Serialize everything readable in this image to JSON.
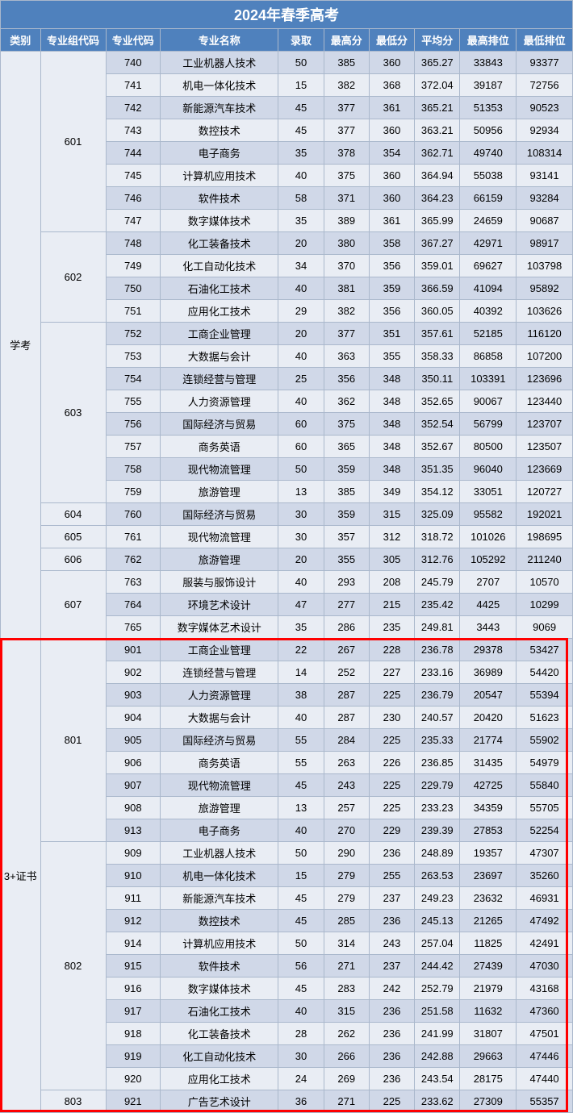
{
  "title": "2024年春季高考",
  "columns": [
    "类别",
    "专业组代码",
    "专业代码",
    "专业名称",
    "录取",
    "最高分",
    "最低分",
    "平均分",
    "最高排位",
    "最低排位"
  ],
  "colors": {
    "headerBg": "#4f81bd",
    "headerFg": "#ffffff",
    "altRow1": "#d0d8e8",
    "altRow2": "#e9edf4",
    "border": "#aab8cc",
    "highlight": "#ff0000"
  },
  "categories": [
    {
      "name": "学考",
      "groups": [
        {
          "code": "601",
          "rows": [
            [
              "740",
              "工业机器人技术",
              "50",
              "385",
              "360",
              "365.27",
              "33843",
              "93377"
            ],
            [
              "741",
              "机电一体化技术",
              "15",
              "382",
              "368",
              "372.04",
              "39187",
              "72756"
            ],
            [
              "742",
              "新能源汽车技术",
              "45",
              "377",
              "361",
              "365.21",
              "51353",
              "90523"
            ],
            [
              "743",
              "数控技术",
              "45",
              "377",
              "360",
              "363.21",
              "50956",
              "92934"
            ],
            [
              "744",
              "电子商务",
              "35",
              "378",
              "354",
              "362.71",
              "49740",
              "108314"
            ],
            [
              "745",
              "计算机应用技术",
              "40",
              "375",
              "360",
              "364.94",
              "55038",
              "93141"
            ],
            [
              "746",
              "软件技术",
              "58",
              "371",
              "360",
              "364.23",
              "66159",
              "93284"
            ],
            [
              "747",
              "数字媒体技术",
              "35",
              "389",
              "361",
              "365.99",
              "24659",
              "90687"
            ]
          ]
        },
        {
          "code": "602",
          "rows": [
            [
              "748",
              "化工装备技术",
              "20",
              "380",
              "358",
              "367.27",
              "42971",
              "98917"
            ],
            [
              "749",
              "化工自动化技术",
              "34",
              "370",
              "356",
              "359.01",
              "69627",
              "103798"
            ],
            [
              "750",
              "石油化工技术",
              "40",
              "381",
              "359",
              "366.59",
              "41094",
              "95892"
            ],
            [
              "751",
              "应用化工技术",
              "29",
              "382",
              "356",
              "360.05",
              "40392",
              "103626"
            ]
          ]
        },
        {
          "code": "603",
          "rows": [
            [
              "752",
              "工商企业管理",
              "20",
              "377",
              "351",
              "357.61",
              "52185",
              "116120"
            ],
            [
              "753",
              "大数据与会计",
              "40",
              "363",
              "355",
              "358.33",
              "86858",
              "107200"
            ],
            [
              "754",
              "连锁经营与管理",
              "25",
              "356",
              "348",
              "350.11",
              "103391",
              "123696"
            ],
            [
              "755",
              "人力资源管理",
              "40",
              "362",
              "348",
              "352.65",
              "90067",
              "123440"
            ],
            [
              "756",
              "国际经济与贸易",
              "60",
              "375",
              "348",
              "352.54",
              "56799",
              "123707"
            ],
            [
              "757",
              "商务英语",
              "60",
              "365",
              "348",
              "352.67",
              "80500",
              "123507"
            ],
            [
              "758",
              "现代物流管理",
              "50",
              "359",
              "348",
              "351.35",
              "96040",
              "123669"
            ],
            [
              "759",
              "旅游管理",
              "13",
              "385",
              "349",
              "354.12",
              "33051",
              "120727"
            ]
          ]
        },
        {
          "code": "604",
          "rows": [
            [
              "760",
              "国际经济与贸易",
              "30",
              "359",
              "315",
              "325.09",
              "95582",
              "192021"
            ]
          ]
        },
        {
          "code": "605",
          "rows": [
            [
              "761",
              "现代物流管理",
              "30",
              "357",
              "312",
              "318.72",
              "101026",
              "198695"
            ]
          ]
        },
        {
          "code": "606",
          "rows": [
            [
              "762",
              "旅游管理",
              "20",
              "355",
              "305",
              "312.76",
              "105292",
              "211240"
            ]
          ]
        },
        {
          "code": "607",
          "rows": [
            [
              "763",
              "服装与服饰设计",
              "40",
              "293",
              "208",
              "245.79",
              "2707",
              "10570"
            ],
            [
              "764",
              "环境艺术设计",
              "47",
              "277",
              "215",
              "235.42",
              "4425",
              "10299"
            ],
            [
              "765",
              "数字媒体艺术设计",
              "35",
              "286",
              "235",
              "249.81",
              "3443",
              "9069"
            ]
          ]
        }
      ]
    },
    {
      "name": "3+证书",
      "highlighted": true,
      "groups": [
        {
          "code": "801",
          "rows": [
            [
              "901",
              "工商企业管理",
              "22",
              "267",
              "228",
              "236.78",
              "29378",
              "53427"
            ],
            [
              "902",
              "连锁经营与管理",
              "14",
              "252",
              "227",
              "233.16",
              "36989",
              "54420"
            ],
            [
              "903",
              "人力资源管理",
              "38",
              "287",
              "225",
              "236.79",
              "20547",
              "55394"
            ],
            [
              "904",
              "大数据与会计",
              "40",
              "287",
              "230",
              "240.57",
              "20420",
              "51623"
            ],
            [
              "905",
              "国际经济与贸易",
              "55",
              "284",
              "225",
              "235.33",
              "21774",
              "55902"
            ],
            [
              "906",
              "商务英语",
              "55",
              "263",
              "226",
              "236.85",
              "31435",
              "54979"
            ],
            [
              "907",
              "现代物流管理",
              "45",
              "243",
              "225",
              "229.79",
              "42725",
              "55840"
            ],
            [
              "908",
              "旅游管理",
              "13",
              "257",
              "225",
              "233.23",
              "34359",
              "55705"
            ],
            [
              "913",
              "电子商务",
              "40",
              "270",
              "229",
              "239.39",
              "27853",
              "52254"
            ]
          ]
        },
        {
          "code": "802",
          "rows": [
            [
              "909",
              "工业机器人技术",
              "50",
              "290",
              "236",
              "248.89",
              "19357",
              "47307"
            ],
            [
              "910",
              "机电一体化技术",
              "15",
              "279",
              "255",
              "263.53",
              "23697",
              "35260"
            ],
            [
              "911",
              "新能源汽车技术",
              "45",
              "279",
              "237",
              "249.23",
              "23632",
              "46931"
            ],
            [
              "912",
              "数控技术",
              "45",
              "285",
              "236",
              "245.13",
              "21265",
              "47492"
            ],
            [
              "914",
              "计算机应用技术",
              "50",
              "314",
              "243",
              "257.04",
              "11825",
              "42491"
            ],
            [
              "915",
              "软件技术",
              "56",
              "271",
              "237",
              "244.42",
              "27439",
              "47030"
            ],
            [
              "916",
              "数字媒体技术",
              "45",
              "283",
              "242",
              "252.79",
              "21979",
              "43168"
            ],
            [
              "917",
              "石油化工技术",
              "40",
              "315",
              "236",
              "251.58",
              "11632",
              "47360"
            ],
            [
              "918",
              "化工装备技术",
              "28",
              "262",
              "236",
              "241.99",
              "31807",
              "47501"
            ],
            [
              "919",
              "化工自动化技术",
              "30",
              "266",
              "236",
              "242.88",
              "29663",
              "47446"
            ],
            [
              "920",
              "应用化工技术",
              "24",
              "269",
              "236",
              "243.54",
              "28175",
              "47440"
            ]
          ]
        },
        {
          "code": "803",
          "rows": [
            [
              "921",
              "广告艺术设计",
              "36",
              "271",
              "225",
              "233.62",
              "27309",
              "55357"
            ]
          ]
        }
      ]
    }
  ]
}
